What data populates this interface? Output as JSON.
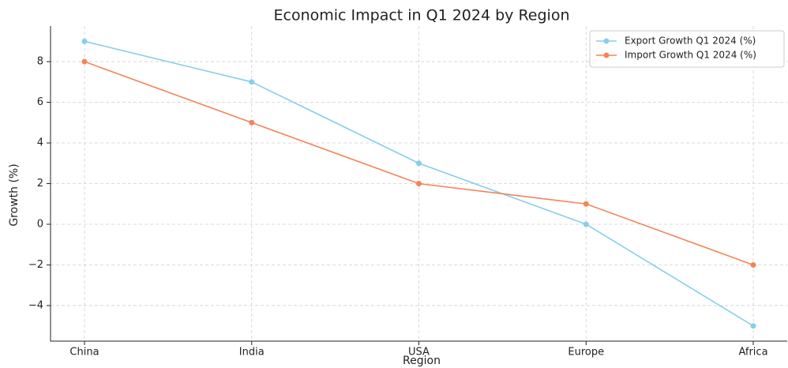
{
  "chart_data": {
    "type": "line",
    "title": "Economic Impact in Q1 2024 by Region",
    "x_label": "Region",
    "y_label": "Growth (%)",
    "categories": [
      "China",
      "India",
      "USA",
      "Europe",
      "Africa"
    ],
    "series": [
      {
        "name": "Export Growth Q1 2024 (%)",
        "color": "#87ceeb",
        "values": [
          9,
          7,
          3,
          0,
          -5
        ]
      },
      {
        "name": "Import Growth Q1 2024 (%)",
        "color": "#f4845a",
        "values": [
          8,
          5,
          2,
          1,
          -2
        ]
      }
    ],
    "ylim": [
      -5.75,
      9.75
    ],
    "yticks": [
      {
        "value": -4,
        "label": "−4"
      },
      {
        "value": -2,
        "label": "−2"
      },
      0,
      2,
      4,
      6,
      8
    ],
    "grid": true,
    "legend": "upper right"
  }
}
